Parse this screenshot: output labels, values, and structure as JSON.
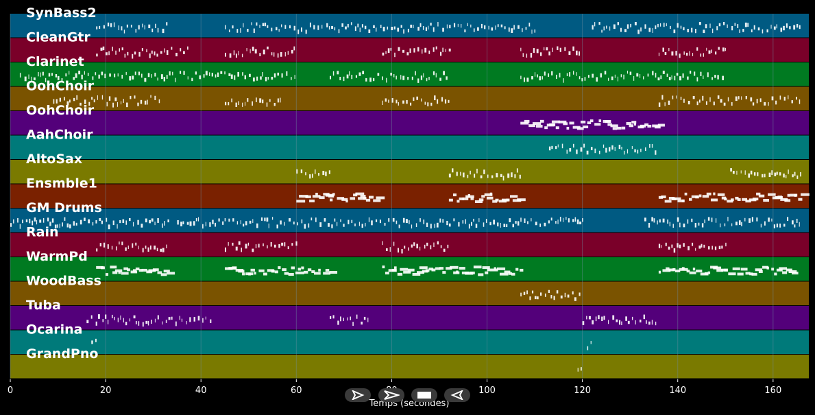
{
  "tracks": [
    {
      "name": "SynBass2",
      "color": "#005a82"
    },
    {
      "name": "CleanGtr",
      "color": "#7a0029"
    },
    {
      "name": "Clarinet",
      "color": "#007a21"
    },
    {
      "name": "OohChoir",
      "color": "#7a5300"
    },
    {
      "name": "OohChoir",
      "color": "#53007a"
    },
    {
      "name": "AahChoir",
      "color": "#007a7a"
    },
    {
      "name": "AltoSax",
      "color": "#7a7a00"
    },
    {
      "name": "Ensmble1",
      "color": "#7a2100"
    },
    {
      "name": "GM Drums",
      "color": "#005a82"
    },
    {
      "name": "Rain",
      "color": "#7a0029"
    },
    {
      "name": "WarmPd",
      "color": "#007a21"
    },
    {
      "name": "WoodBass",
      "color": "#7a5300"
    },
    {
      "name": "Tuba",
      "color": "#53007a"
    },
    {
      "name": "Ocarina",
      "color": "#007a7a"
    },
    {
      "name": "GrandPno",
      "color": "#7a7a00"
    }
  ],
  "axis": {
    "title": "Temps (secondes)",
    "ticks": [
      "0",
      "20",
      "40",
      "60",
      "80",
      "100",
      "120",
      "140",
      "160"
    ],
    "min": 0,
    "max": 167.5
  },
  "transport": {
    "buttons": [
      {
        "name": "play-icon"
      },
      {
        "name": "fast-forward-icon"
      },
      {
        "name": "stop-icon"
      },
      {
        "name": "rewind-icon"
      }
    ]
  },
  "colors": {
    "background": "#000000",
    "note": "#ffffff",
    "grid": "#6f8f9f"
  }
}
